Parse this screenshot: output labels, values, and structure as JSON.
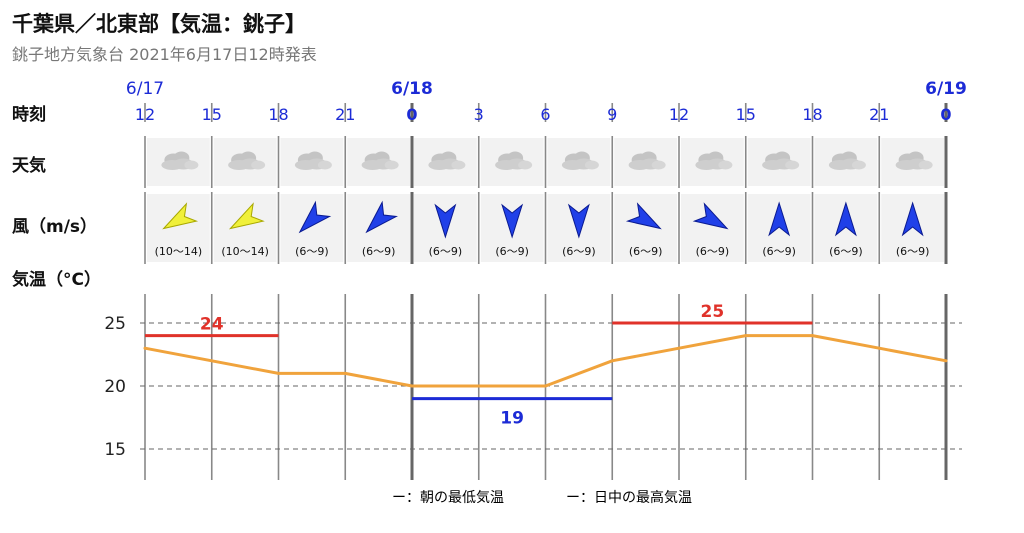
{
  "header": {
    "title": "千葉県／北東部【気温：銚子】",
    "subtitle": "銚子地方気象台 2021年6月17日12時発表"
  },
  "row_labels": {
    "time": "時刻",
    "weather": "天気",
    "wind": "風（m/s）",
    "temp": "気温（°C）"
  },
  "dates": [
    {
      "label": "6/17",
      "index": 0,
      "bold": false
    },
    {
      "label": "6/18",
      "index": 4,
      "bold": true
    },
    {
      "label": "6/19",
      "index": 12,
      "bold": true
    }
  ],
  "hours": [
    "12",
    "15",
    "18",
    "21",
    "0",
    "3",
    "6",
    "9",
    "12",
    "15",
    "18",
    "21",
    "0"
  ],
  "weather": [
    "cloud-icon",
    "cloud-icon",
    "cloud-icon",
    "cloud-icon",
    "cloud-icon",
    "cloud-icon",
    "cloud-icon",
    "cloud-icon",
    "cloud-icon",
    "cloud-icon",
    "cloud-icon",
    "cloud-icon"
  ],
  "wind": [
    {
      "range": "(10～14)",
      "dir_deg": 240,
      "strong": true
    },
    {
      "range": "(10～14)",
      "dir_deg": 240,
      "strong": true
    },
    {
      "range": "(6～9)",
      "dir_deg": 225,
      "strong": false
    },
    {
      "range": "(6～9)",
      "dir_deg": 225,
      "strong": false
    },
    {
      "range": "(6～9)",
      "dir_deg": 180,
      "strong": false
    },
    {
      "range": "(6～9)",
      "dir_deg": 180,
      "strong": false
    },
    {
      "range": "(6～9)",
      "dir_deg": 180,
      "strong": false
    },
    {
      "range": "(6～9)",
      "dir_deg": 120,
      "strong": false
    },
    {
      "range": "(6～9)",
      "dir_deg": 120,
      "strong": false
    },
    {
      "range": "(6～9)",
      "dir_deg": 0,
      "strong": false
    },
    {
      "range": "(6～9)",
      "dir_deg": 0,
      "strong": false
    },
    {
      "range": "(6～9)",
      "dir_deg": 0,
      "strong": false
    }
  ],
  "colors": {
    "temp_line": "#f0a33c",
    "min_temp": "#1c2bd6",
    "max_temp": "#e0322a",
    "wind_strong": "#f0f03a",
    "wind_normal": "#2040e8",
    "grid": "#888888"
  },
  "chart_data": {
    "type": "line",
    "x": [
      "12",
      "15",
      "18",
      "21",
      "0",
      "3",
      "6",
      "9",
      "12",
      "15",
      "18",
      "21",
      "0"
    ],
    "y": [
      23,
      22,
      21,
      21,
      20,
      20,
      20,
      22,
      23,
      24,
      24,
      23,
      22
    ],
    "yticks": [
      25,
      20,
      15
    ],
    "ylim": [
      13,
      27
    ],
    "min_max": [
      {
        "kind": "max",
        "value": "24",
        "from": 0,
        "to": 2
      },
      {
        "kind": "min",
        "value": "19",
        "from": 4,
        "to": 7
      },
      {
        "kind": "max",
        "value": "25",
        "from": 7,
        "to": 10
      }
    ]
  },
  "legend": {
    "min_label": "ー：朝の最低気温",
    "max_label": "ー：日中の最高気温"
  }
}
